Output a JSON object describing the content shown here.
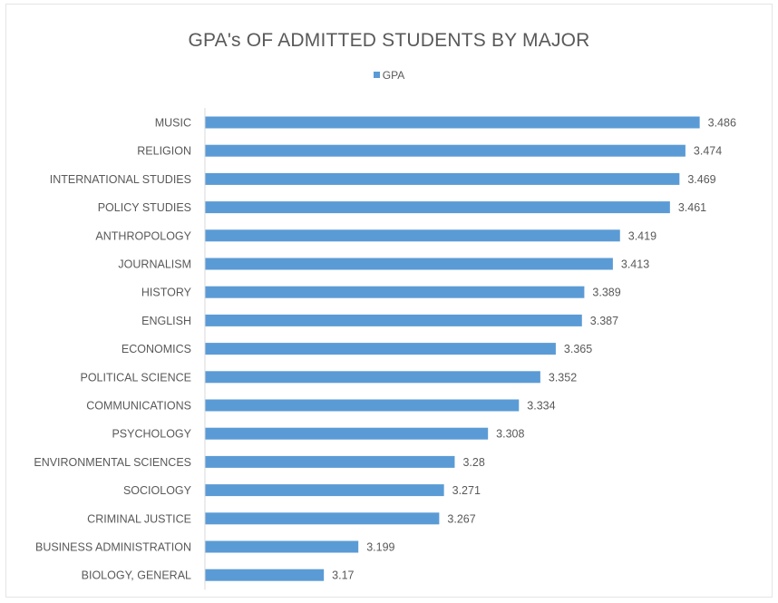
{
  "chart_data": {
    "type": "bar",
    "orientation": "horizontal",
    "title": "GPA's OF ADMITTED STUDENTS BY MAJOR",
    "legend": {
      "position": "top",
      "entries": [
        "GPA"
      ]
    },
    "bar_color": "#5b9bd5",
    "grid": false,
    "xlim": [
      3.07,
      3.5
    ],
    "categories": [
      "MUSIC",
      "RELIGION",
      "INTERNATIONAL STUDIES",
      "POLICY STUDIES",
      "ANTHROPOLOGY",
      "JOURNALISM",
      "HISTORY",
      "ENGLISH",
      "ECONOMICS",
      "POLITICAL SCIENCE",
      "COMMUNICATIONS",
      "PSYCHOLOGY",
      "ENVIRONMENTAL SCIENCES",
      "SOCIOLOGY",
      "CRIMINAL JUSTICE",
      "BUSINESS ADMINISTRATION",
      "BIOLOGY, GENERAL"
    ],
    "series": [
      {
        "name": "GPA",
        "values": [
          3.486,
          3.474,
          3.469,
          3.461,
          3.419,
          3.413,
          3.389,
          3.387,
          3.365,
          3.352,
          3.334,
          3.308,
          3.28,
          3.271,
          3.267,
          3.199,
          3.17
        ],
        "labels": [
          "3.486",
          "3.474",
          "3.469",
          "3.461",
          "3.419",
          "3.413",
          "3.389",
          "3.387",
          "3.365",
          "3.352",
          "3.334",
          "3.308",
          "3.28",
          "3.271",
          "3.267",
          "3.199",
          "3.17"
        ]
      }
    ]
  }
}
